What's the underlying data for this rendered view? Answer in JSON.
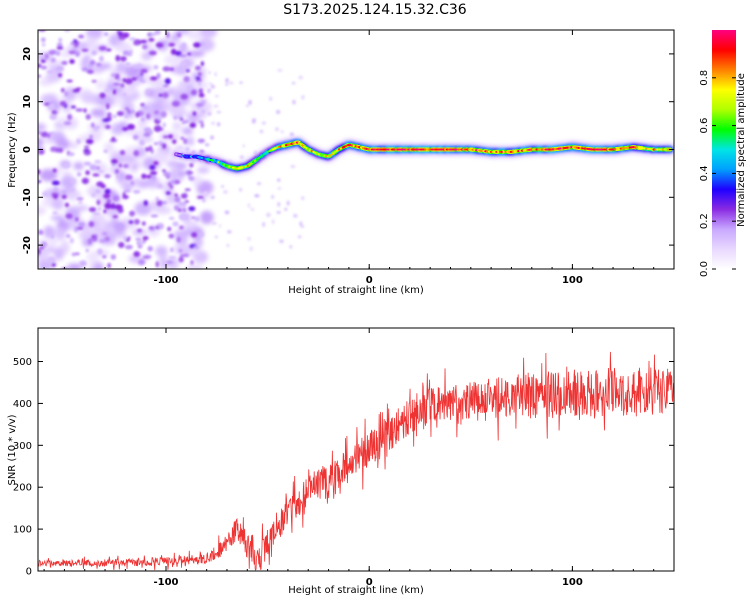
{
  "title": "S173.2025.124.15.32.C36",
  "colorbar": {
    "label": "Normalized spectral amplitude",
    "ticks": [
      "0.0",
      "0.2",
      "0.4",
      "0.6",
      "0.8"
    ],
    "tick_values": [
      0.0,
      0.2,
      0.4,
      0.6,
      0.8
    ],
    "range": [
      0,
      1
    ],
    "gradient": [
      "#ffffff",
      "#e8d8ff",
      "#c8a8ff",
      "#8a2be2",
      "#1e00ff",
      "#00a0ff",
      "#00e5e5",
      "#00ff00",
      "#b0ff00",
      "#ffff00",
      "#ff8000",
      "#ff0000",
      "#ff0080"
    ]
  },
  "chart_data": [
    {
      "type": "heatmap",
      "name": "spectrogram",
      "xlabel": "Height of straight line (km)",
      "ylabel": "Frequency (Hz)",
      "xlim": [
        -163,
        150
      ],
      "ylim": [
        -25,
        25
      ],
      "xticks": [
        -100,
        0,
        100
      ],
      "xtick_labels": [
        "-100",
        "0",
        "100"
      ],
      "yticks": [
        -20,
        -10,
        0,
        10,
        20
      ],
      "ytick_labels": [
        "-20",
        "-10",
        "0",
        "10",
        "20"
      ],
      "noise_region_x": [
        -163,
        -82
      ],
      "ridge": {
        "x": [
          -95,
          -90,
          -85,
          -80,
          -75,
          -70,
          -65,
          -60,
          -55,
          -50,
          -45,
          -40,
          -35,
          -30,
          -25,
          -20,
          -15,
          -10,
          -5,
          0,
          10,
          20,
          30,
          40,
          50,
          60,
          70,
          80,
          90,
          100,
          110,
          120,
          130,
          140,
          148
        ],
        "y": [
          -1,
          -1.5,
          -1.5,
          -2,
          -2.5,
          -3.5,
          -4,
          -3.5,
          -2,
          -0.5,
          0.5,
          1,
          1.5,
          0,
          -1,
          -1.5,
          0,
          1,
          0.5,
          0,
          0,
          0,
          0,
          0,
          0,
          -0.5,
          -0.5,
          0,
          0,
          0.5,
          0,
          0,
          0.5,
          0,
          0
        ],
        "amplitude": [
          0.25,
          0.35,
          0.4,
          0.45,
          0.55,
          0.7,
          0.8,
          0.75,
          0.6,
          0.55,
          0.7,
          0.9,
          0.85,
          0.75,
          0.7,
          0.75,
          0.8,
          0.85,
          0.85,
          0.9,
          0.95,
          0.95,
          0.9,
          0.95,
          0.9,
          0.85,
          0.85,
          0.9,
          0.95,
          0.9,
          0.95,
          0.9,
          0.85,
          0.8,
          0.75
        ]
      }
    },
    {
      "type": "line",
      "name": "snr",
      "xlabel": "Height of straight line (km)",
      "ylabel": "SNR (10 * v/v)",
      "xlim": [
        -163,
        150
      ],
      "ylim": [
        0,
        580
      ],
      "xticks": [
        -100,
        0,
        100
      ],
      "xtick_labels": [
        "-100",
        "0",
        "100"
      ],
      "yticks": [
        0,
        100,
        200,
        300,
        400,
        500
      ],
      "ytick_labels": [
        "0",
        "100",
        "200",
        "300",
        "400",
        "500"
      ],
      "color": "#ee3333",
      "trend": {
        "x": [
          -163,
          -120,
          -90,
          -80,
          -75,
          -70,
          -65,
          -60,
          -55,
          -50,
          -45,
          -40,
          -35,
          -30,
          -25,
          -20,
          -15,
          -10,
          -5,
          0,
          5,
          10,
          15,
          20,
          25,
          30,
          40,
          50,
          60,
          70,
          80,
          90,
          100,
          110,
          120,
          130,
          140,
          150
        ],
        "y": [
          18,
          20,
          25,
          30,
          45,
          70,
          100,
          60,
          20,
          70,
          100,
          140,
          160,
          185,
          200,
          210,
          230,
          250,
          270,
          290,
          310,
          330,
          350,
          370,
          385,
          395,
          400,
          405,
          410,
          415,
          420,
          420,
          425,
          425,
          428,
          425,
          430,
          430
        ]
      },
      "noise_amplitude": {
        "x": [
          -163,
          -80,
          -60,
          -40,
          0,
          40,
          80,
          150
        ],
        "y": [
          8,
          15,
          40,
          50,
          55,
          55,
          70,
          75
        ]
      }
    }
  ]
}
